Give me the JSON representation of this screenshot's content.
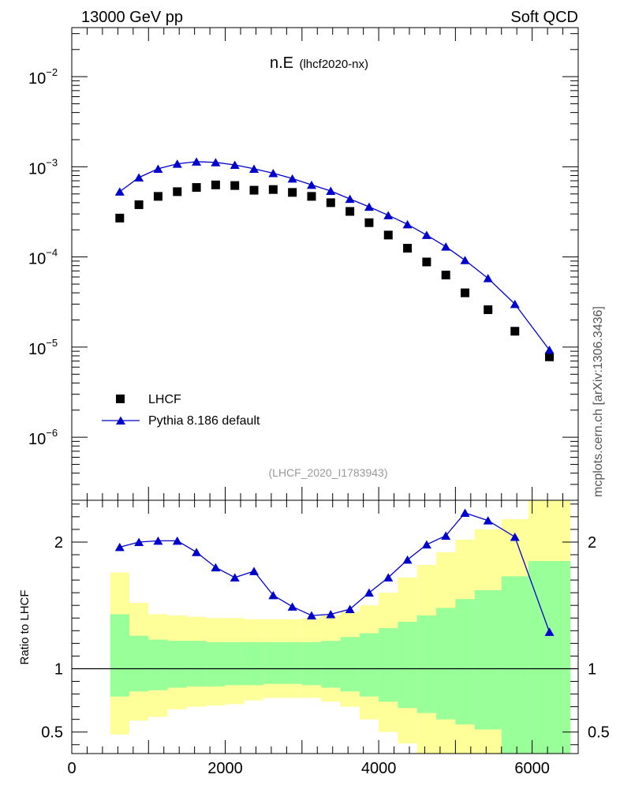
{
  "header": {
    "left": "13000 GeV pp",
    "right": "Soft QCD"
  },
  "side_note": "mcplots.cern.ch [arXiv:1306.3436]",
  "chart_data": [
    {
      "type": "scatter",
      "panel": "main",
      "title": "n.E",
      "subtitle": "(lhcf2020-nx)",
      "annotation": "(LHCF_2020_I1783943)",
      "ylabel": "",
      "xlabel": "",
      "xlim": [
        0,
        6600
      ],
      "ylim": [
        2e-07,
        0.035
      ],
      "yscale": "log",
      "ytick_labels": [
        {
          "base": "10",
          "exp": "−6",
          "value": 1e-06
        },
        {
          "base": "10",
          "exp": "−5",
          "value": 1e-05
        },
        {
          "base": "10",
          "exp": "−4",
          "value": 0.0001
        },
        {
          "base": "10",
          "exp": "−3",
          "value": 0.001
        },
        {
          "base": "10",
          "exp": "−2",
          "value": 0.01
        }
      ],
      "legend_position": "bottom-left",
      "series": [
        {
          "name": "LHCF",
          "marker": "square",
          "color": "#000000",
          "x": [
            625,
            875,
            1125,
            1375,
            1625,
            1875,
            2125,
            2375,
            2625,
            2875,
            3125,
            3375,
            3625,
            3875,
            4125,
            4375,
            4625,
            4875,
            5125,
            5425,
            5775,
            6225
          ],
          "y": [
            0.00027,
            0.00038,
            0.00047,
            0.00053,
            0.00059,
            0.00063,
            0.00062,
            0.00055,
            0.00056,
            0.00052,
            0.00047,
            0.0004,
            0.00032,
            0.00024,
            0.000175,
            0.000125,
            8.8e-05,
            6.3e-05,
            4e-05,
            2.6e-05,
            1.5e-05,
            7.8e-06
          ]
        },
        {
          "name": "Pythia 8.186 default",
          "marker": "triangle",
          "color": "#0000cc",
          "x": [
            625,
            875,
            1125,
            1375,
            1625,
            1875,
            2125,
            2375,
            2625,
            2875,
            3125,
            3375,
            3625,
            3875,
            4125,
            4375,
            4625,
            4875,
            5125,
            5425,
            5775,
            6225
          ],
          "y": [
            0.00053,
            0.00076,
            0.00095,
            0.00108,
            0.00114,
            0.00112,
            0.00105,
            0.00095,
            0.00085,
            0.00074,
            0.00063,
            0.00054,
            0.00044,
            0.00036,
            0.00029,
            0.00023,
            0.000175,
            0.00013,
            9.2e-05,
            5.8e-05,
            3e-05,
            9.3e-06
          ]
        }
      ]
    },
    {
      "type": "line",
      "panel": "ratio",
      "ylabel": "Ratio to LHCF",
      "xlabel": "",
      "xlim": [
        0,
        6600
      ],
      "ylim": [
        0.33,
        2.33
      ],
      "xtick_labels": [
        "0",
        "2000",
        "4000",
        "6000"
      ],
      "xtick_values": [
        0,
        2000,
        4000,
        6000
      ],
      "ytick_labels": [
        "0.5",
        "1",
        "2"
      ],
      "ytick_values": [
        0.5,
        1,
        2
      ],
      "reference_line": 1,
      "bands": {
        "edges": [
          500,
          750,
          1000,
          1250,
          1500,
          1750,
          2000,
          2250,
          2500,
          2750,
          3000,
          3250,
          3500,
          3750,
          4000,
          4250,
          4500,
          4750,
          5000,
          5250,
          5600,
          5950,
          6500
        ],
        "yellow_color": "#ffff99",
        "green_color": "#99ff99",
        "yellow_upper": [
          1.76,
          1.52,
          1.43,
          1.42,
          1.41,
          1.4,
          1.4,
          1.39,
          1.39,
          1.39,
          1.4,
          1.42,
          1.45,
          1.5,
          1.6,
          1.72,
          1.82,
          1.92,
          2.02,
          2.1,
          2.18,
          2.33
        ],
        "yellow_lower": [
          0.48,
          0.59,
          0.62,
          0.68,
          0.7,
          0.71,
          0.72,
          0.75,
          0.77,
          0.77,
          0.77,
          0.74,
          0.7,
          0.6,
          0.5,
          0.41,
          0.33,
          0.33,
          0.33,
          0.33,
          0.33,
          0.33
        ],
        "green_upper": [
          1.43,
          1.26,
          1.23,
          1.22,
          1.22,
          1.21,
          1.21,
          1.21,
          1.21,
          1.21,
          1.21,
          1.22,
          1.25,
          1.28,
          1.32,
          1.37,
          1.42,
          1.48,
          1.55,
          1.62,
          1.73,
          1.85
        ],
        "green_lower": [
          0.78,
          0.82,
          0.83,
          0.85,
          0.86,
          0.86,
          0.87,
          0.87,
          0.88,
          0.88,
          0.87,
          0.85,
          0.82,
          0.78,
          0.74,
          0.69,
          0.65,
          0.6,
          0.56,
          0.52,
          0.33,
          0.33
        ]
      },
      "series": [
        {
          "name": "Pythia 8.186 default",
          "marker": "triangle",
          "color": "#0000cc",
          "x": [
            625,
            875,
            1125,
            1375,
            1625,
            1875,
            2125,
            2375,
            2625,
            2875,
            3125,
            3375,
            3625,
            3875,
            4125,
            4375,
            4625,
            4875,
            5125,
            5425,
            5775,
            6225
          ],
          "y": [
            1.96,
            2.0,
            2.01,
            2.01,
            1.92,
            1.8,
            1.72,
            1.77,
            1.58,
            1.49,
            1.42,
            1.43,
            1.47,
            1.6,
            1.72,
            1.86,
            1.98,
            2.05,
            2.23,
            2.17,
            2.04,
            1.29
          ]
        }
      ]
    }
  ]
}
